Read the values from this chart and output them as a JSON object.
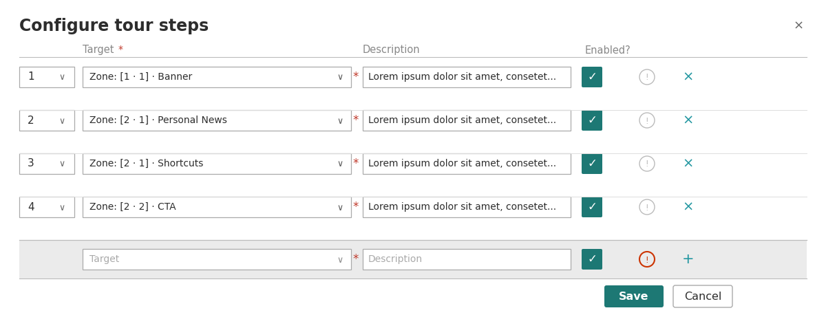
{
  "title": "Configure tour steps",
  "close_symbol": "×",
  "bg_color": "#ffffff",
  "teal_color": "#1d7874",
  "gray_bg": "#ebebeb",
  "header_line_color": "#bbbbbb",
  "separator_color": "#dddddd",
  "text_color": "#2d2d2d",
  "gray_text": "#888888",
  "red_color": "#c0392b",
  "teal_x_color": "#2196a0",
  "teal_plus_color": "#2196a0",
  "rows": [
    {
      "num": "1",
      "target": "Zone: [1 · 1] · Banner",
      "desc": "Lorem ipsum dolor sit amet, consetet..."
    },
    {
      "num": "2",
      "target": "Zone: [2 · 1] · Personal News",
      "desc": "Lorem ipsum dolor sit amet, consetet..."
    },
    {
      "num": "3",
      "target": "Zone: [2 · 1] · Shortcuts",
      "desc": "Lorem ipsum dolor sit amet, consetet..."
    },
    {
      "num": "4",
      "target": "Zone: [2 · 2] · CTA",
      "desc": "Lorem ipsum dolor sit amet, consetet..."
    }
  ],
  "new_row_target": "Target",
  "new_row_desc": "Description",
  "col_target": "Target",
  "col_desc": "Description",
  "col_enabled": "Enabled?",
  "btn_save": "Save",
  "btn_cancel": "Cancel"
}
